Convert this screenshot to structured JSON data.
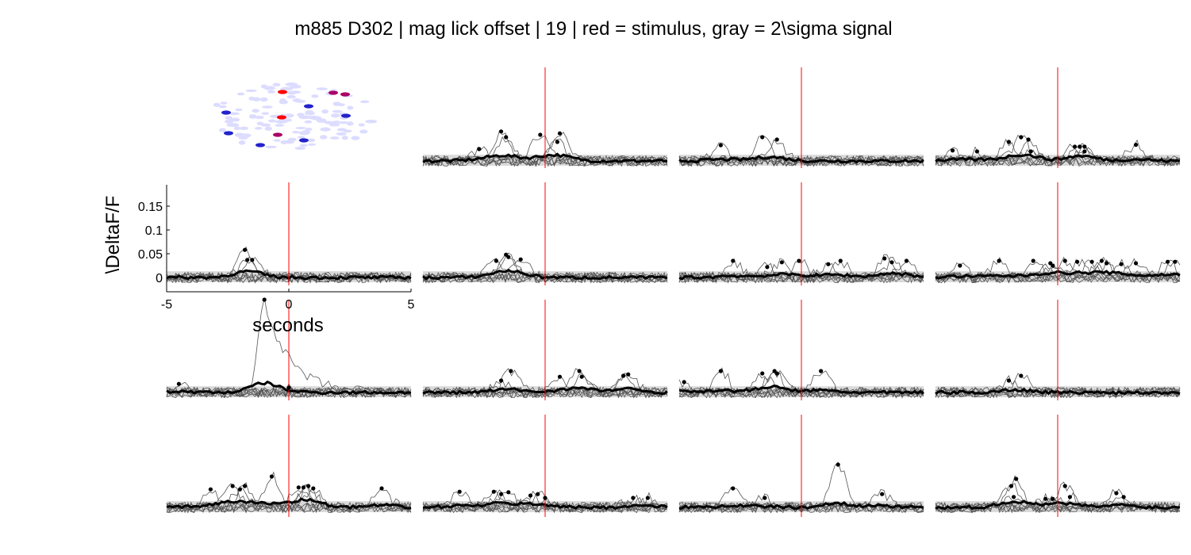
{
  "title": "m885 D302 | mag lick  offset | 19 | red = stimulus, gray = 2\\sigma signal",
  "colors": {
    "stimulus": "#ff0000",
    "mean_trace": "#000000",
    "trial_traces": "#555555",
    "sigma_band": "#d9d9d9",
    "roi_background": "#dcdcff",
    "roi_red": "#ff0000",
    "roi_blue": "#2222cc",
    "roi_purple": "#aa0066"
  },
  "chart_data": {
    "type": "line",
    "layout": "small-multiples grid, 4 rows x 4 columns; top-left cell is an ROI map",
    "xlabel": "seconds",
    "ylabel": "\\DeltaF/F",
    "xlim": [
      -5,
      5
    ],
    "ylim": [
      -0.03,
      0.2
    ],
    "xticks": [
      "-5",
      "0",
      "5"
    ],
    "yticks": [
      "0",
      "0.05",
      "0.1",
      "0.15"
    ],
    "stimulus_time": 0,
    "sigma_band": [
      -0.01,
      0.013
    ],
    "axes_shown_on": "row 2, column 1",
    "panels": [
      {
        "id": "r1c1",
        "kind": "roi-map"
      },
      {
        "id": "r1c2",
        "kind": "trace",
        "peaks": [
          [
            -2.7,
            0.025
          ],
          [
            -1.8,
            0.062
          ],
          [
            -1.6,
            0.05
          ],
          [
            -0.2,
            0.055
          ],
          [
            0.5,
            0.04
          ],
          [
            0.6,
            0.058
          ]
        ]
      },
      {
        "id": "r1c3",
        "kind": "trace",
        "peaks": [
          [
            -3.3,
            0.033
          ],
          [
            -1.6,
            0.05
          ],
          [
            -1.0,
            0.045
          ]
        ]
      },
      {
        "id": "r1c4",
        "kind": "trace",
        "peaks": [
          [
            -4.3,
            0.022
          ],
          [
            -3.3,
            0.02
          ],
          [
            -2.0,
            0.04
          ],
          [
            -1.5,
            0.05
          ],
          [
            -1.2,
            0.045
          ],
          [
            -1.1,
            0.02
          ],
          [
            0.7,
            0.03
          ],
          [
            0.9,
            0.03
          ],
          [
            1.1,
            0.03
          ],
          [
            1.1,
            0.02
          ],
          [
            3.2,
            0.034
          ]
        ]
      },
      {
        "id": "r2c1",
        "kind": "trace-with-axes",
        "peaks": [
          [
            -1.8,
            0.058
          ],
          [
            -1.7,
            0.037
          ],
          [
            -1.5,
            0.037
          ]
        ]
      },
      {
        "id": "r2c2",
        "kind": "trace",
        "peaks": [
          [
            -2.0,
            0.035
          ],
          [
            -1.6,
            0.048
          ],
          [
            -1.5,
            0.043
          ],
          [
            -1.0,
            0.038
          ]
        ]
      },
      {
        "id": "r2c3",
        "kind": "trace",
        "peaks": [
          [
            -2.8,
            0.035
          ],
          [
            -1.4,
            0.022
          ],
          [
            -0.8,
            0.032
          ],
          [
            -0.1,
            0.035
          ],
          [
            1.1,
            0.028
          ],
          [
            1.6,
            0.035
          ],
          [
            3.4,
            0.04
          ],
          [
            3.7,
            0.032
          ],
          [
            4.3,
            0.035
          ]
        ]
      },
      {
        "id": "r2c4",
        "kind": "trace",
        "peaks": [
          [
            -4.0,
            0.025
          ],
          [
            -2.4,
            0.035
          ],
          [
            -1.0,
            0.035
          ],
          [
            -0.3,
            0.03
          ],
          [
            -0.2,
            0.025
          ],
          [
            0.3,
            0.035
          ],
          [
            0.8,
            0.033
          ],
          [
            1.4,
            0.033
          ],
          [
            1.8,
            0.035
          ],
          [
            2.0,
            0.03
          ],
          [
            2.6,
            0.028
          ],
          [
            3.2,
            0.03
          ],
          [
            4.5,
            0.033
          ],
          [
            4.8,
            0.033
          ]
        ]
      },
      {
        "id": "r3c1",
        "kind": "trace",
        "peaks": [
          [
            -4.5,
            0.018
          ],
          [
            -1.0,
            0.195
          ],
          [
            0.0,
            0.01
          ]
        ]
      },
      {
        "id": "r3c2",
        "kind": "trace",
        "peaks": [
          [
            -1.8,
            0.025
          ],
          [
            -1.4,
            0.045
          ],
          [
            0.6,
            0.033
          ],
          [
            1.4,
            0.045
          ],
          [
            1.5,
            0.033
          ],
          [
            3.2,
            0.035
          ],
          [
            3.4,
            0.038
          ]
        ]
      },
      {
        "id": "r3c3",
        "kind": "trace",
        "peaks": [
          [
            -4.8,
            0.022
          ],
          [
            -3.3,
            0.045
          ],
          [
            -1.6,
            0.04
          ],
          [
            -1.1,
            0.045
          ],
          [
            -1.0,
            0.04
          ],
          [
            0.8,
            0.045
          ]
        ]
      },
      {
        "id": "r3c4",
        "kind": "trace",
        "peaks": [
          [
            -2.0,
            0.025
          ],
          [
            -1.5,
            0.035
          ]
        ]
      },
      {
        "id": "r4c1",
        "kind": "trace",
        "peaks": [
          [
            -3.2,
            0.038
          ],
          [
            -2.3,
            0.045
          ],
          [
            -2.0,
            0.038
          ],
          [
            -1.8,
            0.045
          ],
          [
            -0.7,
            0.065
          ],
          [
            0.4,
            0.042
          ],
          [
            0.6,
            0.042
          ],
          [
            0.8,
            0.045
          ],
          [
            1.0,
            0.04
          ],
          [
            3.8,
            0.04
          ]
        ]
      },
      {
        "id": "r4c2",
        "kind": "trace",
        "peaks": [
          [
            -3.5,
            0.033
          ],
          [
            -2.1,
            0.033
          ],
          [
            -1.8,
            0.028
          ],
          [
            -1.5,
            0.032
          ],
          [
            -0.6,
            0.025
          ],
          [
            -0.3,
            0.028
          ],
          [
            0.0,
            0.02
          ],
          [
            3.6,
            0.02
          ],
          [
            4.2,
            0.02
          ]
        ]
      },
      {
        "id": "r4c3",
        "kind": "trace",
        "peaks": [
          [
            -2.8,
            0.04
          ],
          [
            -1.5,
            0.02
          ],
          [
            1.5,
            0.09
          ],
          [
            3.3,
            0.028
          ]
        ]
      },
      {
        "id": "r4c4",
        "kind": "trace",
        "peaks": [
          [
            -1.9,
            0.045
          ],
          [
            -1.7,
            0.06
          ],
          [
            -1.8,
            0.022
          ],
          [
            -0.5,
            0.018
          ],
          [
            -0.2,
            0.018
          ],
          [
            0.3,
            0.045
          ],
          [
            0.5,
            0.022
          ],
          [
            2.4,
            0.03
          ],
          [
            2.7,
            0.022
          ]
        ]
      }
    ]
  }
}
